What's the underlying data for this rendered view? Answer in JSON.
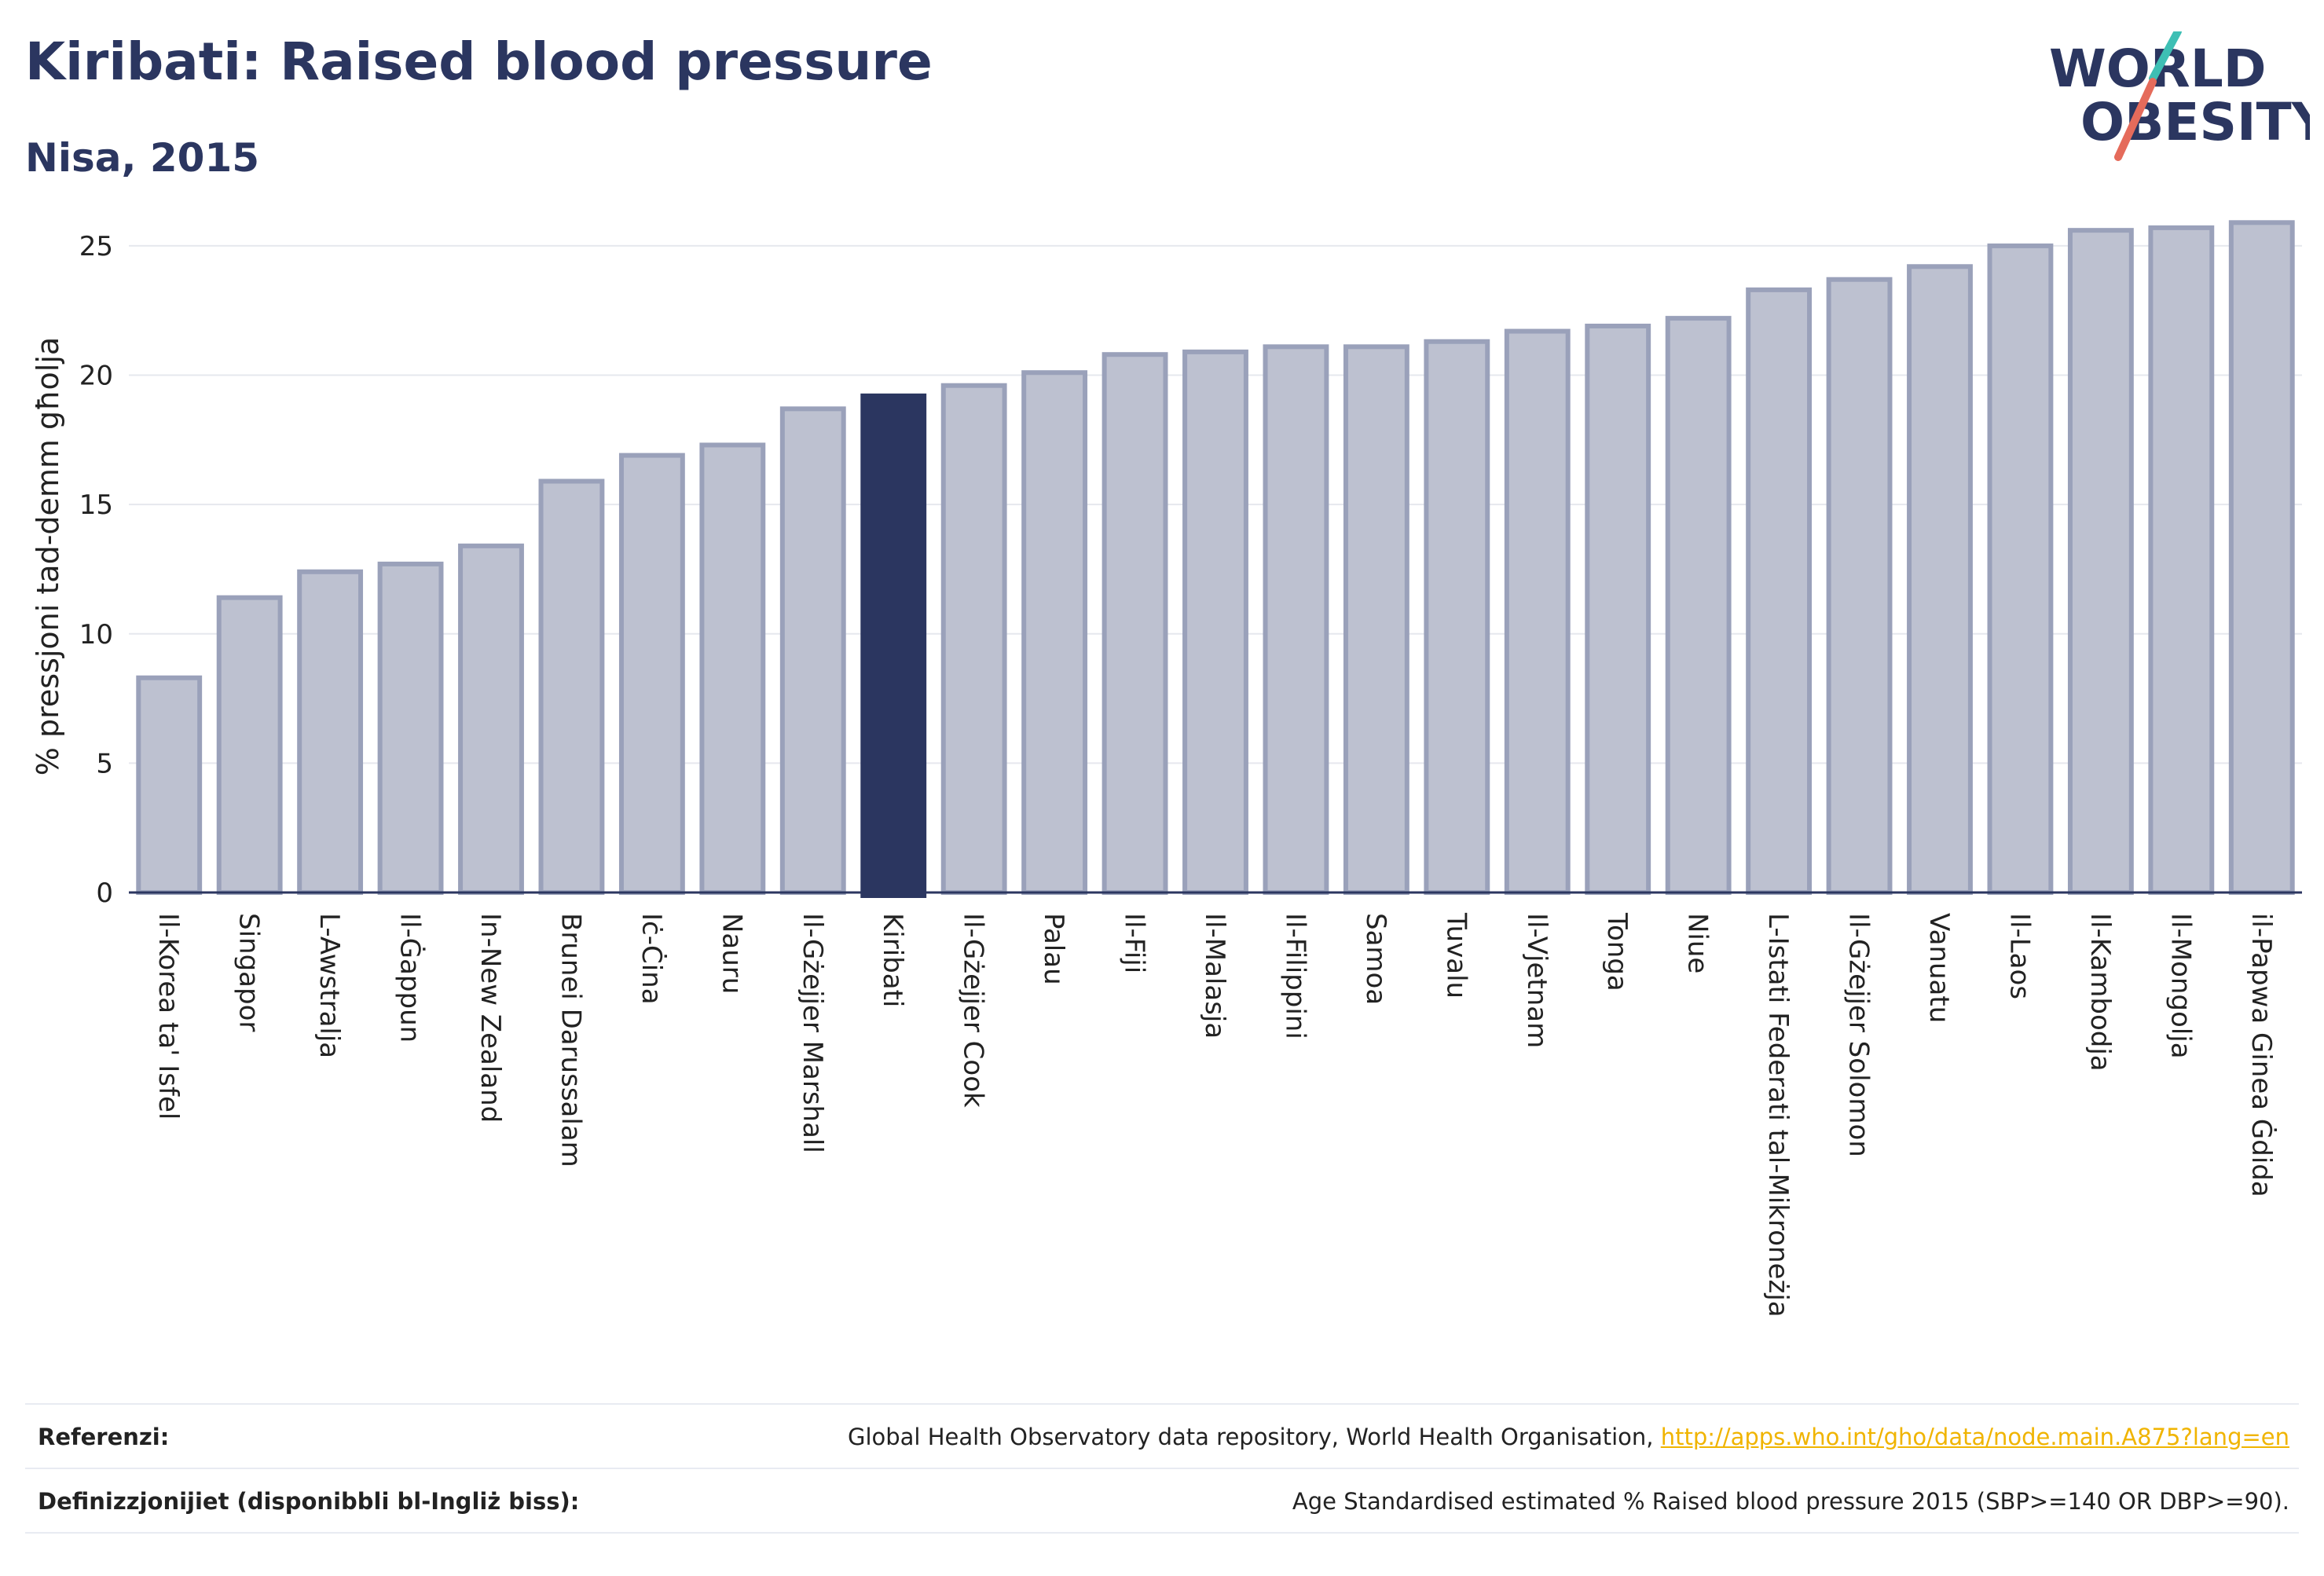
{
  "header": {
    "title": "Kiribati: Raised blood pressure",
    "subtitle": "Nisa, 2015"
  },
  "logo": {
    "line1": "WORLD",
    "line2": "OBESITY"
  },
  "colors": {
    "bar_default": "#bdc1d0",
    "bar_default_stroke": "#9aa1ba",
    "bar_highlight": "#2b3660",
    "text": "#2b3660",
    "link": "#f0b400",
    "logo_teal": "#3ebfb4",
    "logo_coral": "#e56b5b"
  },
  "chart_data": {
    "type": "bar",
    "ylabel": "% pressjoni tad-demm għolja",
    "xlabel": "",
    "ylim": [
      0,
      26
    ],
    "yticks": [
      0,
      5,
      10,
      15,
      20,
      25
    ],
    "grid": true,
    "highlight": "Kiribati",
    "categories": [
      "Il-Korea ta' Isfel",
      "Singapor",
      "L-Awstralja",
      "Il-Ġappun",
      "In-New Zealand",
      "Brunei Darussalam",
      "Iċ-Ċina",
      "Nauru",
      "Il-Gżejjer Marshall",
      "Kiribati",
      "Il-Gżejjer Cook",
      "Palau",
      "Il-Fiji",
      "Il-Malasja",
      "Il-Filippini",
      "Samoa",
      "Tuvalu",
      "Il-Vjetnam",
      "Tonga",
      "Niue",
      "L-Istati Federati tal-Mikroneżja",
      "Il-Gżejjer Solomon",
      "Vanuatu",
      "Il-Laos",
      "Il-Kambodja",
      "Il-Mongolja",
      "il-Papwa Ginea Ġdida"
    ],
    "values": [
      8.3,
      11.4,
      12.4,
      12.7,
      13.4,
      15.9,
      16.9,
      17.3,
      18.7,
      19.2,
      19.6,
      20.1,
      20.8,
      20.9,
      21.1,
      21.1,
      21.3,
      21.7,
      21.9,
      22.2,
      23.3,
      23.7,
      24.2,
      25.0,
      25.6,
      25.7,
      25.9
    ]
  },
  "footer": {
    "references_label": "Referenzi:",
    "references_text": "Global Health Observatory data repository, World Health Organisation, ",
    "references_link": "http://apps.who.int/gho/data/node.main.A875?lang=en",
    "definitions_label": "Definizzjonijiet (disponibbli bl-Ingliż biss):",
    "definitions_text": "Age Standardised estimated % Raised blood pressure 2015 (SBP>=140 OR DBP>=90)."
  }
}
